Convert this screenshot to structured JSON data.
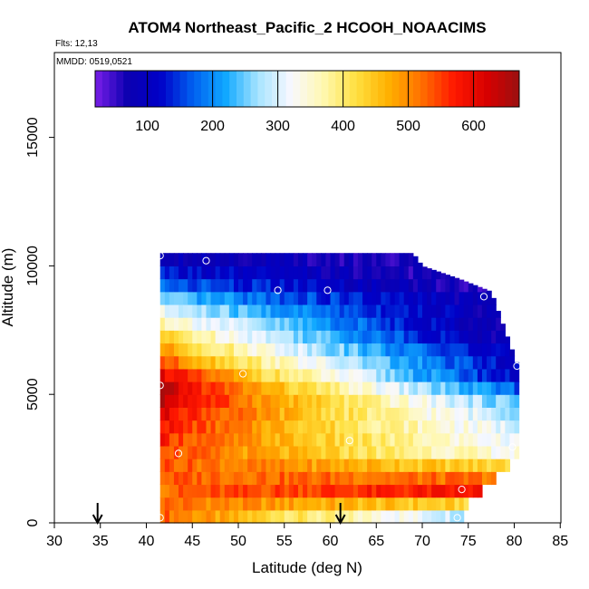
{
  "chart_data": {
    "type": "heatmap",
    "title": "ATOM4 Northeast_Pacific_2 HCOOH_NOAACIMS",
    "subtitle_flights": "Flts: 12,13",
    "subtitle_dates": "MMDD: 0519,0521",
    "xlabel": "Latitude (deg N)",
    "ylabel": "Altitude (m)",
    "xlim": [
      30,
      85
    ],
    "ylim": [
      0,
      17000
    ],
    "xticks": [
      "30",
      "35",
      "40",
      "45",
      "50",
      "55",
      "60",
      "65",
      "70",
      "75",
      "80",
      "85"
    ],
    "yticks": [
      "0",
      "5000",
      "10000",
      "15000"
    ],
    "colorbar": {
      "range": [
        20,
        670
      ],
      "ticks": [
        "100",
        "200",
        "300",
        "400",
        "500",
        "600"
      ],
      "tick_values": [
        100,
        200,
        300,
        400,
        500,
        600
      ],
      "colors": [
        "#7a1ee8",
        "#0b00b0",
        "#0000c8",
        "#0060f0",
        "#10a8ff",
        "#a8e4ff",
        "#f8f8ff",
        "#fff8b0",
        "#ffe040",
        "#ffb000",
        "#ff7000",
        "#ff1800",
        "#d80000",
        "#9a1010"
      ]
    },
    "lat_range": [
      41.5,
      80.5
    ],
    "cell_lat_step": 0.5,
    "cell_alt_step": 500,
    "domain_top_altitude": [
      {
        "lat": 41.5,
        "alt": 10500
      },
      {
        "lat": 69.0,
        "alt": 10500
      },
      {
        "lat": 70.0,
        "alt": 10000
      },
      {
        "lat": 74.0,
        "alt": 9500
      },
      {
        "lat": 77.5,
        "alt": 9000
      },
      {
        "lat": 78.5,
        "alt": 8000
      },
      {
        "lat": 79.5,
        "alt": 7000
      },
      {
        "lat": 80.5,
        "alt": 6000
      }
    ],
    "domain_bottom_alt_lat": [
      {
        "alt": 0,
        "lat": 74.0
      },
      {
        "alt": 1000,
        "lat": 75.5
      },
      {
        "alt": 1500,
        "lat": 77.0
      },
      {
        "alt": 2000,
        "lat": 78.5
      },
      {
        "alt": 2500,
        "lat": 80.0
      },
      {
        "alt": 3000,
        "lat": 80.5
      },
      {
        "alt": 6000,
        "lat": 80.5
      }
    ],
    "profile_keypoints": [
      {
        "alt": 250,
        "west": 540,
        "east": 250
      },
      {
        "alt": 1300,
        "west": 520,
        "east": 600
      },
      {
        "alt": 2800,
        "west": 560,
        "east": 320
      },
      {
        "alt": 4000,
        "west": 600,
        "east": 290
      },
      {
        "alt": 5000,
        "west": 660,
        "east": 220
      },
      {
        "alt": 5500,
        "west": 650,
        "east": 110
      },
      {
        "alt": 6500,
        "west": 520,
        "east": 95
      },
      {
        "alt": 7500,
        "west": 420,
        "east": 45
      },
      {
        "alt": 8500,
        "west": 280,
        "east": 70
      },
      {
        "alt": 9500,
        "west": 150,
        "east": 40
      },
      {
        "alt": 10500,
        "west": 80,
        "east": 60
      }
    ],
    "sample_points": [
      {
        "lat": 41.5,
        "alt": 10400
      },
      {
        "lat": 46.5,
        "alt": 10200
      },
      {
        "lat": 54.3,
        "alt": 9050
      },
      {
        "lat": 59.7,
        "alt": 9050
      },
      {
        "lat": 69.8,
        "alt": 10700
      },
      {
        "lat": 76.7,
        "alt": 8800
      },
      {
        "lat": 41.5,
        "alt": 5350
      },
      {
        "lat": 50.5,
        "alt": 5800
      },
      {
        "lat": 80.3,
        "alt": 6100
      },
      {
        "lat": 43.5,
        "alt": 2700
      },
      {
        "lat": 62.1,
        "alt": 3200
      },
      {
        "lat": 79.8,
        "alt": 2950
      },
      {
        "lat": 74.3,
        "alt": 1300
      },
      {
        "lat": 41.5,
        "alt": 200
      },
      {
        "lat": 73.8,
        "alt": 200
      }
    ],
    "arrows_lat": [
      34.7,
      61.1
    ],
    "grid": false
  }
}
